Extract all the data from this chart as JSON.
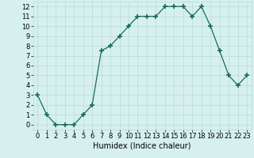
{
  "x": [
    0,
    1,
    2,
    3,
    4,
    5,
    6,
    7,
    8,
    9,
    10,
    11,
    12,
    13,
    14,
    15,
    16,
    17,
    18,
    19,
    20,
    21,
    22,
    23
  ],
  "y": [
    3,
    1,
    0,
    0,
    0,
    1,
    2,
    7.5,
    8,
    9,
    10,
    11,
    11,
    11,
    12,
    12,
    12,
    11,
    12,
    10,
    7.5,
    5,
    4,
    5
  ],
  "xlabel": "Humidex (Indice chaleur)",
  "xlim": [
    -0.5,
    23.5
  ],
  "ylim": [
    -0.5,
    12.5
  ],
  "yticks": [
    0,
    1,
    2,
    3,
    4,
    5,
    6,
    7,
    8,
    9,
    10,
    11,
    12
  ],
  "xticks": [
    0,
    1,
    2,
    3,
    4,
    5,
    6,
    7,
    8,
    9,
    10,
    11,
    12,
    13,
    14,
    15,
    16,
    17,
    18,
    19,
    20,
    21,
    22,
    23
  ],
  "line_color": "#1a6b5a",
  "marker": "+",
  "marker_size": 4,
  "marker_edge_width": 1.2,
  "line_width": 0.9,
  "bg_color": "#d6f0ee",
  "grid_color": "#b8dbd8",
  "label_fontsize": 7,
  "tick_fontsize": 6
}
